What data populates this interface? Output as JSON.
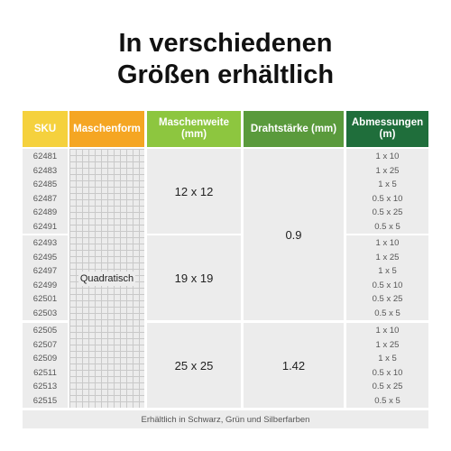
{
  "header": {
    "title_lines": [
      "In verschiedenen",
      "Größen erhältlich"
    ]
  },
  "table": {
    "columns": [
      "SKU",
      "Maschenform",
      "Maschenweite (mm)",
      "Drahtstärke (mm)",
      "Abmessungen (m)"
    ],
    "form": "Quadratisch",
    "groups": [
      {
        "skus": [
          "62481",
          "62483",
          "62485",
          "62487",
          "62489",
          "62491"
        ],
        "mesh": "12 x 12",
        "sizes": [
          "1 x 10",
          "1 x 25",
          "1 x 5",
          "0.5 x 10",
          "0.5 x 25",
          "0.5 x 5"
        ]
      },
      {
        "skus": [
          "62493",
          "62495",
          "62497",
          "62499",
          "62501",
          "62503"
        ],
        "mesh": "19 x 19",
        "sizes": [
          "1 x 10",
          "1 x 25",
          "1 x 5",
          "0.5 x 10",
          "0.5 x 25",
          "0.5 x 5"
        ]
      },
      {
        "skus": [
          "62505",
          "62507",
          "62509",
          "62511",
          "62513",
          "62515"
        ],
        "mesh": "25 x 25",
        "sizes": [
          "1 x 10",
          "1 x 25",
          "1 x 5",
          "0.5 x 10",
          "0.5 x 25",
          "0.5 x 5"
        ]
      }
    ],
    "wire": [
      "0.9",
      "1.42"
    ],
    "footer": "Erhältlich in Schwarz, Grün und Silberfarben"
  }
}
